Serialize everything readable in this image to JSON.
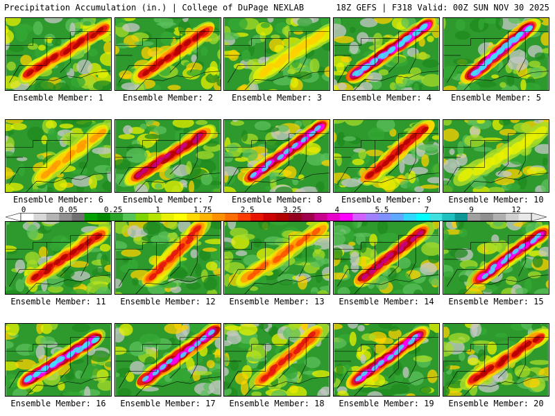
{
  "header": {
    "title": "Precipitation Accumulation (in.) | College of DuPage NEXLAB",
    "run_info": "18Z GEFS | F318 Valid: 00Z SUN NOV 30 2025"
  },
  "panels": [
    {
      "label": "Ensemble Member: 1",
      "intensity": 0.55
    },
    {
      "label": "Ensemble Member: 2",
      "intensity": 0.55
    },
    {
      "label": "Ensemble Member: 3",
      "intensity": 0.25
    },
    {
      "label": "Ensemble Member: 4",
      "intensity": 0.95
    },
    {
      "label": "Ensemble Member: 5",
      "intensity": 0.9
    },
    {
      "label": "Ensemble Member: 6",
      "intensity": 0.3
    },
    {
      "label": "Ensemble Member: 7",
      "intensity": 0.65
    },
    {
      "label": "Ensemble Member: 8",
      "intensity": 0.85
    },
    {
      "label": "Ensemble Member: 9",
      "intensity": 0.6
    },
    {
      "label": "Ensemble Member: 10",
      "intensity": 0.15
    },
    {
      "label": "Ensemble Member: 11",
      "intensity": 0.6
    },
    {
      "label": "Ensemble Member: 12",
      "intensity": 0.5
    },
    {
      "label": "Ensemble Member: 13",
      "intensity": 0.45
    },
    {
      "label": "Ensemble Member: 14",
      "intensity": 0.7
    },
    {
      "label": "Ensemble Member: 15",
      "intensity": 0.85
    },
    {
      "label": "Ensemble Member: 16",
      "intensity": 0.95
    },
    {
      "label": "Ensemble Member: 17",
      "intensity": 0.85
    },
    {
      "label": "Ensemble Member: 18",
      "intensity": 0.5
    },
    {
      "label": "Ensemble Member: 19",
      "intensity": 0.8
    },
    {
      "label": "Ensemble Member: 20",
      "intensity": 0.6
    }
  ],
  "colorbar": {
    "tick_labels": [
      "0",
      "0.05",
      "0.25",
      "1",
      "1.75",
      "2.5",
      "3.25",
      "4",
      "5.5",
      "7",
      "9",
      "12"
    ],
    "colors": [
      "#ffffff",
      "#d8d8d8",
      "#b4b4b4",
      "#909090",
      "#707070",
      "#00a000",
      "#008800",
      "#2aa52a",
      "#56c456",
      "#7fd400",
      "#b4e400",
      "#e6f000",
      "#ffff00",
      "#ffd800",
      "#ffb400",
      "#ff9000",
      "#ff6c00",
      "#ff3c00",
      "#e81400",
      "#cc0000",
      "#b00000",
      "#940020",
      "#a0004c",
      "#c8008c",
      "#e600c8",
      "#ff00ff",
      "#d060ff",
      "#a080ff",
      "#8090ff",
      "#60a8ff",
      "#30d8ff",
      "#00ffff",
      "#40e0e0",
      "#20c0c0",
      "#109898",
      "#a0a0a0",
      "#909090",
      "#b0b0b0",
      "#d0d0d0",
      "#e8e8e8"
    ]
  }
}
